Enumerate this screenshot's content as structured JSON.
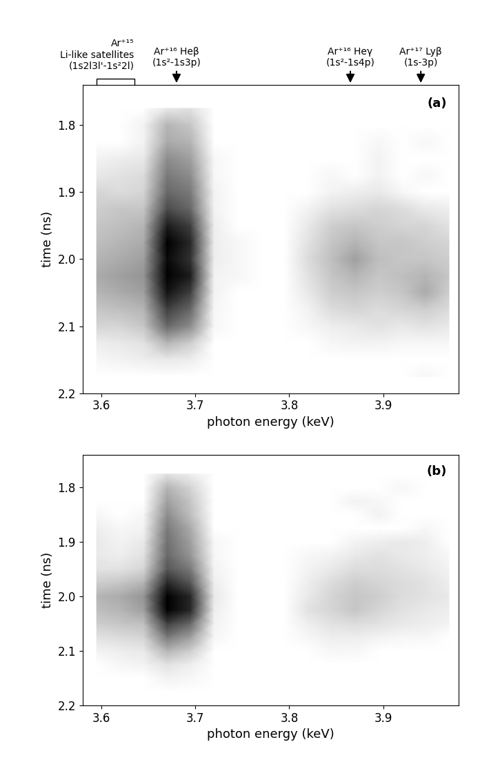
{
  "chart_data": [
    {
      "type": "heatmap",
      "title": "(a)",
      "x_label": "photon energy (keV)",
      "y_label": "time (ns)",
      "xlim": [
        3.58,
        3.98
      ],
      "xticks": [
        3.6,
        3.7,
        3.8,
        3.9
      ],
      "ylim": [
        2.2,
        1.74
      ],
      "yticks": [
        1.8,
        1.9,
        2.0,
        2.1,
        2.2
      ],
      "color_range": [
        0,
        3
      ],
      "annotations": [
        {
          "x_range": [
            3.595,
            3.635
          ],
          "text": "Ar⁺¹⁵\nLi-like satellites\n(1s2l3l'-1s²2l)"
        },
        {
          "x": 3.68,
          "text": "Ar⁺¹⁶ Heβ\n(1s²-1s3p)"
        },
        {
          "x": 3.865,
          "text": "Ar⁺¹⁶ Heγ\n(1s²-1s4p)"
        },
        {
          "x": 3.94,
          "text": "Ar⁺¹⁷ Lyβ\n(1s-3p)"
        }
      ],
      "x": [
        3.595,
        3.62,
        3.645,
        3.67,
        3.695,
        3.72,
        3.745,
        3.77,
        3.795,
        3.82,
        3.845,
        3.87,
        3.895,
        3.92,
        3.945,
        3.97
      ],
      "y": [
        1.775,
        1.8,
        1.825,
        1.85,
        1.875,
        1.9,
        1.925,
        1.95,
        1.975,
        2.0,
        2.025,
        2.05,
        2.075,
        2.1,
        2.125,
        2.15,
        2.175
      ],
      "cells": [
        [
          0,
          0,
          0,
          0.5,
          0.6,
          0,
          0,
          0,
          0,
          0,
          0,
          0,
          0,
          0,
          0,
          0
        ],
        [
          0,
          0,
          0.3,
          1.2,
          1.0,
          0,
          0,
          0,
          0,
          0,
          0,
          0,
          0,
          0,
          0,
          0
        ],
        [
          0,
          0,
          0.3,
          1.3,
          1.2,
          0,
          0,
          0,
          0,
          0,
          0,
          0,
          0.2,
          0,
          0.2,
          0
        ],
        [
          0.3,
          0.4,
          0.5,
          1.6,
          1.4,
          0.2,
          0,
          0,
          0,
          0,
          0,
          0,
          0.3,
          0,
          0,
          0
        ],
        [
          0.5,
          0.6,
          0.7,
          1.8,
          1.6,
          0.2,
          0,
          0,
          0,
          0,
          0.2,
          0,
          0.3,
          0,
          0.2,
          0
        ],
        [
          0.8,
          0.7,
          0.8,
          2.0,
          1.8,
          0.3,
          0,
          0,
          0,
          0,
          0.3,
          0.4,
          0.5,
          0.2,
          0,
          0
        ],
        [
          0.9,
          1.0,
          1.0,
          2.3,
          2.0,
          0.3,
          0,
          0,
          0,
          0.3,
          0.6,
          0.7,
          0.8,
          0.7,
          0.5,
          0.4
        ],
        [
          1.0,
          1.1,
          1.2,
          2.7,
          2.4,
          0.4,
          0,
          0,
          0,
          0.5,
          0.9,
          1.0,
          0.9,
          0.8,
          0.8,
          0.6
        ],
        [
          1.1,
          1.2,
          1.3,
          3.0,
          2.6,
          0.4,
          0.2,
          0,
          0,
          0.6,
          1.0,
          1.2,
          1.0,
          1.0,
          0.9,
          0.8
        ],
        [
          1.2,
          1.3,
          1.4,
          2.9,
          2.5,
          0.4,
          0.2,
          0,
          0,
          0.7,
          1.1,
          1.4,
          1.1,
          1.0,
          1.0,
          0.9
        ],
        [
          1.3,
          1.4,
          1.5,
          3.0,
          2.7,
          0.3,
          0.2,
          0,
          0,
          0.6,
          1.0,
          1.2,
          1.0,
          1.1,
          1.2,
          1.0
        ],
        [
          1.2,
          1.3,
          1.4,
          2.8,
          2.4,
          0.3,
          0,
          0,
          0,
          0.5,
          0.9,
          1.0,
          0.9,
          1.0,
          1.3,
          0.9
        ],
        [
          1.0,
          1.1,
          1.2,
          2.4,
          2.0,
          0.2,
          0,
          0,
          0,
          0.3,
          0.7,
          0.8,
          0.7,
          0.8,
          0.9,
          0.7
        ],
        [
          0.8,
          0.8,
          1.0,
          2.0,
          1.6,
          0.2,
          0,
          0,
          0,
          0.2,
          0.4,
          0.5,
          0.6,
          0.5,
          0.6,
          0.5
        ],
        [
          0.4,
          0.5,
          0.6,
          1.2,
          0.9,
          0,
          0,
          0,
          0,
          0,
          0.2,
          0.3,
          0.3,
          0.2,
          0.2,
          0.2
        ],
        [
          0.2,
          0.3,
          0.4,
          0.5,
          0.4,
          0,
          0,
          0,
          0,
          0,
          0,
          0,
          0,
          0,
          0,
          0
        ],
        [
          0,
          0,
          0,
          0,
          0,
          0,
          0,
          0,
          0,
          0,
          0,
          0,
          0,
          0,
          0.2,
          0
        ]
      ]
    },
    {
      "type": "heatmap",
      "title": "(b)",
      "x_label": "photon energy (keV)",
      "y_label": "time (ns)",
      "xlim": [
        3.58,
        3.98
      ],
      "xticks": [
        3.6,
        3.7,
        3.8,
        3.9
      ],
      "ylim": [
        2.2,
        1.74
      ],
      "yticks": [
        1.8,
        1.9,
        2.0,
        2.1,
        2.2
      ],
      "color_range": [
        0,
        3
      ],
      "x": [
        3.595,
        3.62,
        3.645,
        3.67,
        3.695,
        3.72,
        3.745,
        3.77,
        3.795,
        3.82,
        3.845,
        3.87,
        3.895,
        3.92,
        3.945,
        3.97
      ],
      "y": [
        1.775,
        1.8,
        1.825,
        1.85,
        1.875,
        1.9,
        1.925,
        1.95,
        1.975,
        2.0,
        2.025,
        2.05,
        2.075,
        2.1,
        2.125,
        2.15,
        2.175
      ],
      "cells": [
        [
          0,
          0,
          0,
          0.6,
          0.4,
          0,
          0,
          0,
          0,
          0,
          0,
          0,
          0,
          0,
          0,
          0
        ],
        [
          0,
          0,
          0,
          1.2,
          0.8,
          0,
          0,
          0,
          0,
          0,
          0,
          0,
          0,
          0.2,
          0,
          0
        ],
        [
          0,
          0,
          0,
          1.4,
          1.0,
          0,
          0,
          0,
          0,
          0,
          0,
          0.3,
          0.2,
          0,
          0,
          0
        ],
        [
          0.2,
          0,
          0.2,
          1.6,
          1.1,
          0,
          0,
          0,
          0,
          0,
          0,
          0,
          0.3,
          0,
          0,
          0
        ],
        [
          0.4,
          0.2,
          0.3,
          1.8,
          1.3,
          0,
          0,
          0,
          0,
          0,
          0,
          0,
          0,
          0,
          0.2,
          0
        ],
        [
          0.5,
          0.3,
          0.5,
          1.9,
          1.4,
          0.2,
          0,
          0,
          0,
          0,
          0,
          0.3,
          0.4,
          0.5,
          0.4,
          0
        ],
        [
          0.5,
          0.4,
          0.6,
          2.0,
          1.5,
          0.2,
          0,
          0,
          0,
          0.2,
          0.3,
          0.5,
          0.6,
          0.5,
          0.4,
          0.2
        ],
        [
          0.6,
          0.6,
          0.8,
          2.2,
          1.8,
          0.3,
          0,
          0,
          0,
          0.3,
          0.5,
          0.7,
          0.7,
          0.6,
          0.5,
          0.3
        ],
        [
          0.9,
          1.0,
          1.2,
          2.6,
          2.2,
          0.4,
          0,
          0,
          0,
          0.4,
          0.7,
          0.9,
          0.8,
          0.7,
          0.6,
          0.4
        ],
        [
          1.2,
          1.3,
          1.5,
          3.0,
          2.6,
          0.5,
          0,
          0,
          0,
          0.5,
          0.8,
          1.0,
          0.9,
          0.7,
          0.6,
          0.5
        ],
        [
          1.1,
          1.2,
          1.4,
          3.0,
          2.6,
          0.4,
          0,
          0,
          0,
          0.6,
          0.8,
          1.0,
          0.8,
          0.6,
          0.5,
          0.4
        ],
        [
          0.9,
          1.0,
          1.1,
          2.4,
          2.0,
          0.3,
          0,
          0,
          0,
          0.4,
          0.6,
          0.7,
          0.6,
          0.5,
          0.4,
          0.3
        ],
        [
          0.6,
          0.7,
          0.8,
          1.8,
          1.4,
          0.2,
          0,
          0,
          0,
          0.2,
          0.4,
          0.4,
          0.3,
          0.2,
          0.2,
          0
        ],
        [
          0.3,
          0.4,
          0.5,
          1.2,
          0.9,
          0,
          0,
          0,
          0,
          0,
          0.2,
          0.2,
          0,
          0,
          0,
          0
        ],
        [
          0,
          0.2,
          0.3,
          0.6,
          0.4,
          0,
          0,
          0,
          0,
          0,
          0,
          0,
          0,
          0,
          0,
          0
        ],
        [
          0,
          0,
          0,
          0.3,
          0.2,
          0,
          0,
          0,
          0,
          0,
          0,
          0,
          0,
          0,
          0,
          0
        ],
        [
          0,
          0,
          0,
          0,
          0,
          0,
          0,
          0,
          0,
          0,
          0,
          0,
          0,
          0,
          0,
          0
        ]
      ]
    }
  ]
}
